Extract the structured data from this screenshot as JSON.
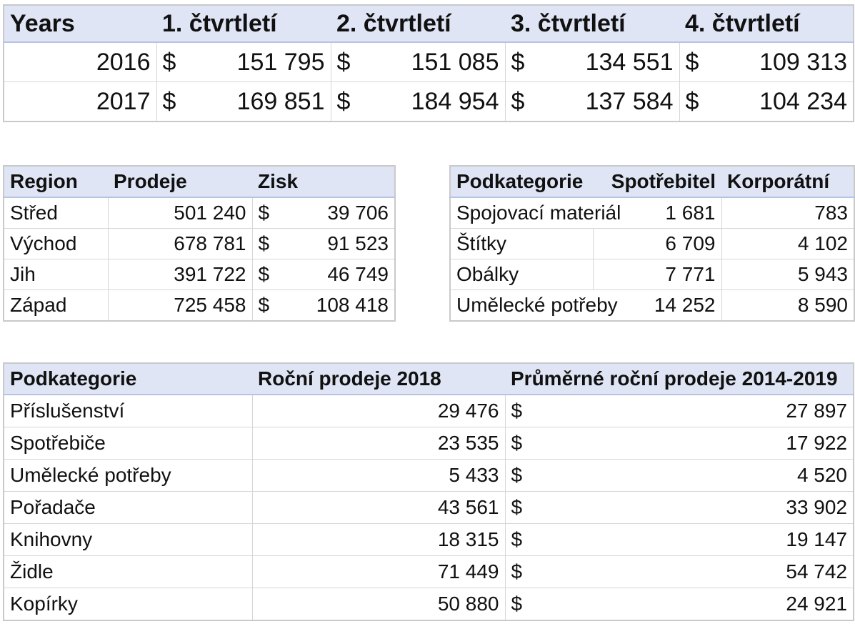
{
  "quarters": {
    "headers": [
      "Years",
      "1. čtvrtletí",
      "2. čtvrtletí",
      "3. čtvrtletí",
      "4. čtvrtletí"
    ],
    "currency": "$",
    "rows": [
      {
        "year": "2016",
        "q1": "151 795",
        "q2": "151 085",
        "q3": "134 551",
        "q4": "109 313"
      },
      {
        "year": "2017",
        "q1": "169 851",
        "q2": "184 954",
        "q3": "137 584",
        "q4": "104 234"
      }
    ]
  },
  "regions": {
    "headers": [
      "Region",
      "Prodeje",
      "Zisk"
    ],
    "currency": "$",
    "rows": [
      {
        "region": "Střed",
        "sales": "501 240",
        "profit": "39 706"
      },
      {
        "region": "Východ",
        "sales": "678 781",
        "profit": "91 523"
      },
      {
        "region": "Jih",
        "sales": "391 722",
        "profit": "46 749"
      },
      {
        "region": "Západ",
        "sales": "725 458",
        "profit": "108 418"
      }
    ]
  },
  "segments": {
    "headers": [
      "Podkategorie",
      "Spotřebitel",
      "Korporátní"
    ],
    "rows": [
      {
        "name": "Spojovací materiál",
        "consumer": "1 681",
        "corporate": "783"
      },
      {
        "name": "Štítky",
        "consumer": "6 709",
        "corporate": "4 102"
      },
      {
        "name": "Obálky",
        "consumer": "7 771",
        "corporate": "5 943"
      },
      {
        "name": "Umělecké potřeby",
        "consumer": "14 252",
        "corporate": "8 590"
      }
    ]
  },
  "subcategories": {
    "headers": [
      "Podkategorie",
      "Roční prodeje 2018",
      "Průměrné roční prodeje 2014-2019"
    ],
    "currency": "$",
    "rows": [
      {
        "name": "Příslušenství",
        "sales2018": "29 476",
        "avg": "27 897"
      },
      {
        "name": "Spotřebiče",
        "sales2018": "23 535",
        "avg": "17 922"
      },
      {
        "name": "Umělecké potřeby",
        "sales2018": "5 433",
        "avg": "4 520"
      },
      {
        "name": "Pořadače",
        "sales2018": "43 561",
        "avg": "33 902"
      },
      {
        "name": "Knihovny",
        "sales2018": "18 315",
        "avg": "19 147"
      },
      {
        "name": "Židle",
        "sales2018": "71 449",
        "avg": "54 742"
      },
      {
        "name": "Kopírky",
        "sales2018": "50 880",
        "avg": "24 921"
      }
    ]
  }
}
